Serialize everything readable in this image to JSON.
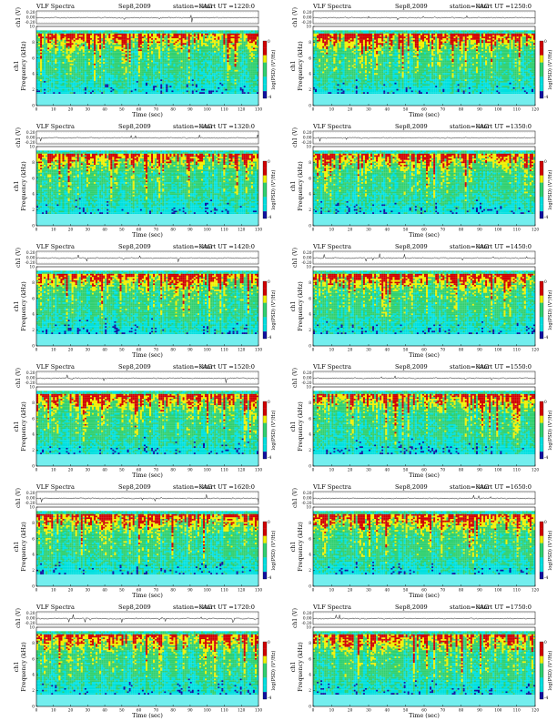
{
  "page": {
    "title": "VLF Spectra multi-panel"
  },
  "common": {
    "header_label": "VLF Spectra",
    "date": "Sep8,2009",
    "station": "station=KAG",
    "ut_prefix": "start UT =",
    "ch_ylabel": "ch1 (V)",
    "freq_ylabel": "Frequency (kHz)",
    "xlabel": "Time (sec)",
    "cbar_label": "log(PSD) (V²/Hz)",
    "ch_ticks": [
      "0.20",
      "0.00",
      "-0.20"
    ],
    "freq_ticks": [
      "0",
      "2",
      "4",
      "6",
      "8",
      "10"
    ],
    "colors": {
      "low": "#1010a0",
      "mid_low": "#00e0e0",
      "mid": "#30d070",
      "mid_high": "#f0f000",
      "high": "#d00000",
      "trace": "#000000"
    }
  },
  "chart_data": [
    {
      "type": "heatmap",
      "panel": "spectrogram-1220",
      "start_ut": "1220:0",
      "xlim": [
        0,
        130
      ],
      "ylim": [
        0,
        10
      ],
      "x_ticks": [
        0,
        10,
        20,
        30,
        40,
        50,
        60,
        70,
        80,
        90,
        100,
        110,
        120,
        130
      ],
      "ylabel": "Frequency (kHz)",
      "xlabel": "Time (sec)",
      "colorbar": {
        "label": "log(PSD) (V²/Hz)",
        "ticks": [
          "-4",
          "0"
        ]
      },
      "band": {
        "bottom_khz": 1.5,
        "top_khz": 9.5
      }
    },
    {
      "type": "heatmap",
      "panel": "spectrogram-1250",
      "start_ut": "1250:0",
      "xlim": [
        0,
        120
      ],
      "ylim": [
        0,
        10
      ],
      "x_ticks": [
        0,
        10,
        20,
        30,
        40,
        50,
        60,
        70,
        80,
        90,
        100,
        110,
        120
      ],
      "ylabel": "Frequency (kHz)",
      "xlabel": "Time (sec)",
      "colorbar": {
        "label": "log(PSD) (V²/Hz)",
        "ticks": [
          "-4",
          "0"
        ]
      },
      "band": {
        "bottom_khz": 1.5,
        "top_khz": 9.5
      }
    },
    {
      "type": "heatmap",
      "panel": "spectrogram-1320",
      "start_ut": "1320:0",
      "xlim": [
        0,
        130
      ],
      "ylim": [
        0,
        10
      ],
      "x_ticks": [
        0,
        10,
        20,
        30,
        40,
        50,
        60,
        70,
        80,
        90,
        100,
        110,
        120,
        130
      ],
      "ylabel": "Frequency (kHz)",
      "xlabel": "Time (sec)",
      "colorbar": {
        "label": "log(PSD) (V²/Hz)",
        "ticks": [
          "-4",
          "0"
        ]
      },
      "band": {
        "bottom_khz": 1.5,
        "top_khz": 9.5
      }
    },
    {
      "type": "heatmap",
      "panel": "spectrogram-1350",
      "start_ut": "1350:0",
      "xlim": [
        0,
        120
      ],
      "ylim": [
        0,
        10
      ],
      "x_ticks": [
        0,
        10,
        20,
        30,
        40,
        50,
        60,
        70,
        80,
        90,
        100,
        110,
        120
      ],
      "ylabel": "Frequency (kHz)",
      "xlabel": "Time (sec)",
      "colorbar": {
        "label": "log(PSD) (V²/Hz)",
        "ticks": [
          "-4",
          "0"
        ]
      },
      "band": {
        "bottom_khz": 1.5,
        "top_khz": 9.5
      }
    },
    {
      "type": "heatmap",
      "panel": "spectrogram-1420",
      "start_ut": "1420:0",
      "xlim": [
        0,
        130
      ],
      "ylim": [
        0,
        10
      ],
      "x_ticks": [
        0,
        10,
        20,
        30,
        40,
        50,
        60,
        70,
        80,
        90,
        100,
        110,
        120,
        130
      ],
      "ylabel": "Frequency (kHz)",
      "xlabel": "Time (sec)",
      "colorbar": {
        "label": "log(PSD) (V²/Hz)",
        "ticks": [
          "-4",
          "0"
        ]
      },
      "band": {
        "bottom_khz": 1.5,
        "top_khz": 9.5
      }
    },
    {
      "type": "heatmap",
      "panel": "spectrogram-1450",
      "start_ut": "1450:0",
      "xlim": [
        0,
        120
      ],
      "ylim": [
        0,
        10
      ],
      "x_ticks": [
        0,
        10,
        20,
        30,
        40,
        50,
        60,
        70,
        80,
        90,
        100,
        110,
        120
      ],
      "ylabel": "Frequency (kHz)",
      "xlabel": "Time (sec)",
      "colorbar": {
        "label": "log(PSD) (V²/Hz)",
        "ticks": [
          "-4",
          "0"
        ]
      },
      "band": {
        "bottom_khz": 1.5,
        "top_khz": 9.5
      }
    },
    {
      "type": "heatmap",
      "panel": "spectrogram-1520",
      "start_ut": "1520:0",
      "xlim": [
        0,
        130
      ],
      "ylim": [
        0,
        10
      ],
      "x_ticks": [
        0,
        10,
        20,
        30,
        40,
        50,
        60,
        70,
        80,
        90,
        100,
        110,
        120,
        130
      ],
      "ylabel": "Frequency (kHz)",
      "xlabel": "Time (sec)",
      "colorbar": {
        "label": "log(PSD) (V²/Hz)",
        "ticks": [
          "-4",
          "0"
        ]
      },
      "band": {
        "bottom_khz": 1.5,
        "top_khz": 9.5
      }
    },
    {
      "type": "heatmap",
      "panel": "spectrogram-1550",
      "start_ut": "1550:0",
      "xlim": [
        0,
        120
      ],
      "ylim": [
        0,
        10
      ],
      "x_ticks": [
        0,
        10,
        20,
        30,
        40,
        50,
        60,
        70,
        80,
        90,
        100,
        110,
        120
      ],
      "ylabel": "Frequency (kHz)",
      "xlabel": "Time (sec)",
      "colorbar": {
        "label": "log(PSD) (V²/Hz)",
        "ticks": [
          "-4",
          "0"
        ]
      },
      "band": {
        "bottom_khz": 1.5,
        "top_khz": 9.5
      }
    },
    {
      "type": "heatmap",
      "panel": "spectrogram-1620",
      "start_ut": "1620:0",
      "xlim": [
        0,
        130
      ],
      "ylim": [
        0,
        10
      ],
      "x_ticks": [
        0,
        10,
        20,
        30,
        40,
        50,
        60,
        70,
        80,
        90,
        100,
        110,
        120,
        130
      ],
      "ylabel": "Frequency (kHz)",
      "xlabel": "Time (sec)",
      "colorbar": {
        "label": "log(PSD) (V²/Hz)",
        "ticks": [
          "-4",
          "0"
        ]
      },
      "band": {
        "bottom_khz": 1.5,
        "top_khz": 9.5
      }
    },
    {
      "type": "heatmap",
      "panel": "spectrogram-1650",
      "start_ut": "1650:0",
      "xlim": [
        0,
        120
      ],
      "ylim": [
        0,
        10
      ],
      "x_ticks": [
        0,
        10,
        20,
        30,
        40,
        50,
        60,
        70,
        80,
        90,
        100,
        110,
        120
      ],
      "ylabel": "Frequency (kHz)",
      "xlabel": "Time (sec)",
      "colorbar": {
        "label": "log(PSD) (V²/Hz)",
        "ticks": [
          "-4",
          "0"
        ]
      },
      "band": {
        "bottom_khz": 1.5,
        "top_khz": 9.5
      }
    },
    {
      "type": "heatmap",
      "panel": "spectrogram-1720",
      "start_ut": "1720:0",
      "xlim": [
        0,
        130
      ],
      "ylim": [
        0,
        10
      ],
      "x_ticks": [
        0,
        10,
        20,
        30,
        40,
        50,
        60,
        70,
        80,
        90,
        100,
        110,
        120,
        130
      ],
      "ylabel": "Frequency (kHz)",
      "xlabel": "Time (sec)",
      "colorbar": {
        "label": "log(PSD) (V²/Hz)",
        "ticks": [
          "-4",
          "0"
        ]
      },
      "band": {
        "bottom_khz": 1.5,
        "top_khz": 9.5
      }
    },
    {
      "type": "heatmap",
      "panel": "spectrogram-1750",
      "start_ut": "1750:0",
      "xlim": [
        0,
        120
      ],
      "ylim": [
        0,
        10
      ],
      "x_ticks": [
        0,
        10,
        20,
        30,
        40,
        50,
        60,
        70,
        80,
        90,
        100,
        110,
        120
      ],
      "ylabel": "Frequency (kHz)",
      "xlabel": "Time (sec)",
      "colorbar": {
        "label": "log(PSD) (V²/Hz)",
        "ticks": [
          "-4",
          "0"
        ]
      },
      "band": {
        "bottom_khz": 1.5,
        "top_khz": 9.5
      }
    }
  ]
}
